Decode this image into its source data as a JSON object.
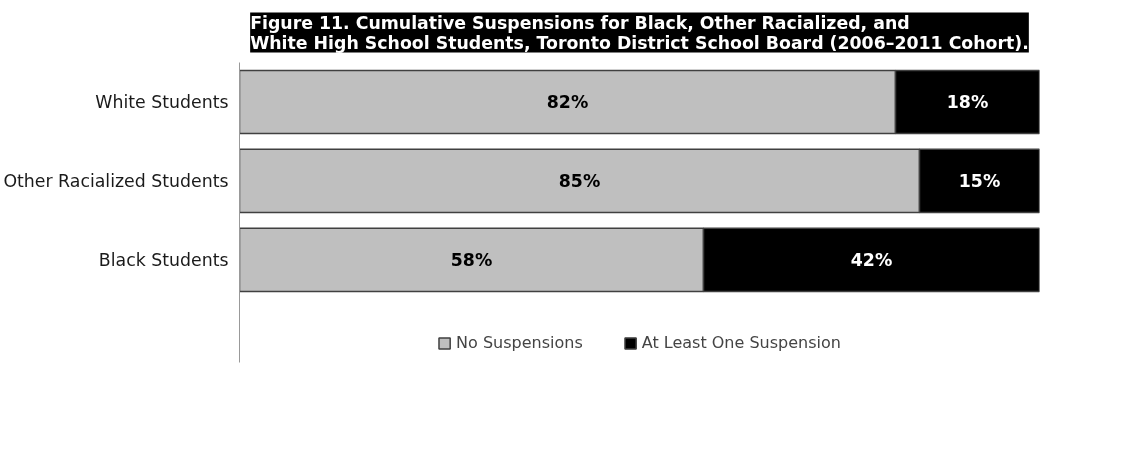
{
  "chart_data": {
    "type": "bar",
    "orientation": "horizontal",
    "stacked": true,
    "title": "Figure 11. Cumulative Suspensions for Black, Other Racialized, and\nWhite High School Students, Toronto District School Board (2006–2011 Cohort).",
    "categories": [
      "White Students",
      "Other Racialized Students",
      "Black Students"
    ],
    "xlim": [
      0,
      100
    ],
    "series": [
      {
        "name": "No Suspensions",
        "color": "#bfbfbf",
        "values": [
          82,
          85,
          58
        ],
        "value_labels": [
          "82%",
          "85%",
          "58%"
        ]
      },
      {
        "name": "At Least One Suspension",
        "color": "#000000",
        "values": [
          18,
          15,
          42
        ],
        "value_labels": [
          "18%",
          "15%",
          "42%"
        ]
      }
    ],
    "legend": "bottom",
    "grid": false
  }
}
